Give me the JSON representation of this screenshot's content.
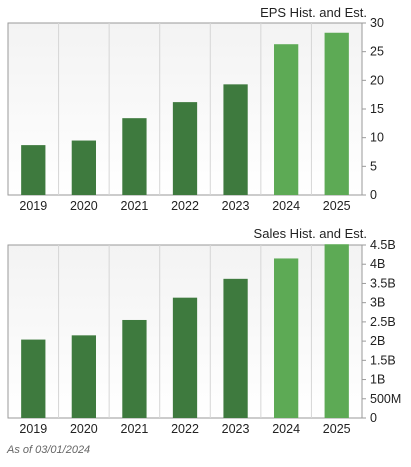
{
  "colors": {
    "historical": "#3e7a3e",
    "estimate": "#5daa55",
    "plot_top": "#f3f3f3",
    "plot_bottom": "#ffffff",
    "gridline": "#d6d6d6",
    "axis": "#9a9a9a"
  },
  "footnote": "As of 03/01/2024",
  "chart_data": [
    {
      "type": "bar",
      "title": "EPS Hist. and Est.",
      "categories": [
        "2019",
        "2020",
        "2021",
        "2022",
        "2023",
        "2024",
        "2025"
      ],
      "values": [
        8.7,
        9.5,
        13.4,
        16.2,
        19.3,
        26.3,
        28.3
      ],
      "bar_kind": [
        "historical",
        "historical",
        "historical",
        "historical",
        "historical",
        "estimate",
        "estimate"
      ],
      "ylim": [
        0,
        30
      ],
      "yticks": [
        0,
        5,
        10,
        15,
        20,
        25,
        30
      ],
      "ytick_labels": [
        "0",
        "5",
        "10",
        "15",
        "20",
        "25",
        "30"
      ],
      "yaxis_side": "right",
      "grid": true
    },
    {
      "type": "bar",
      "title": "Sales Hist. and Est.",
      "categories": [
        "2019",
        "2020",
        "2021",
        "2022",
        "2023",
        "2024",
        "2025"
      ],
      "values": [
        2.04,
        2.15,
        2.55,
        3.13,
        3.62,
        4.15,
        4.52
      ],
      "bar_kind": [
        "historical",
        "historical",
        "historical",
        "historical",
        "historical",
        "estimate",
        "estimate"
      ],
      "ylim": [
        0,
        4.5
      ],
      "yticks": [
        0,
        0.5,
        1,
        1.5,
        2,
        2.5,
        3,
        3.5,
        4,
        4.5
      ],
      "ytick_labels": [
        "0",
        "500M",
        "1B",
        "1.5B",
        "2B",
        "2.5B",
        "3B",
        "3.5B",
        "4B",
        "4.5B"
      ],
      "yaxis_side": "right",
      "grid": true
    }
  ]
}
